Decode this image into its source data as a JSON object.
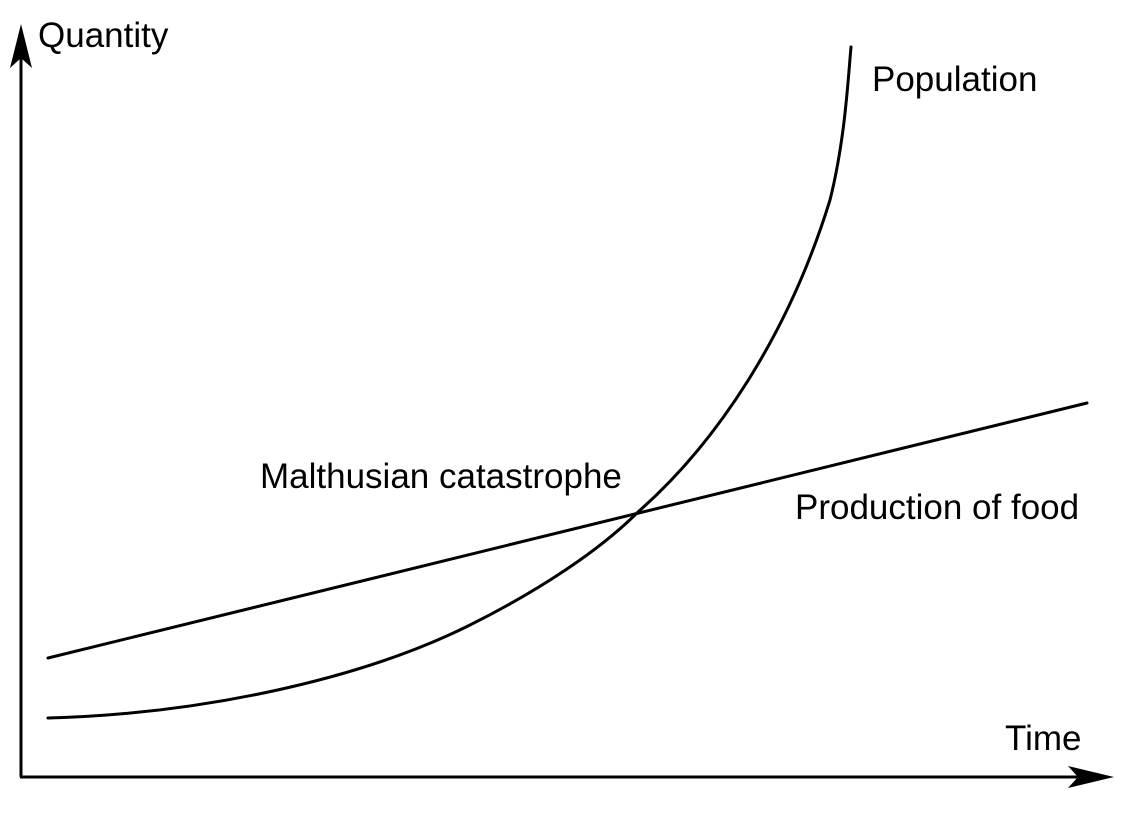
{
  "labels": {
    "y_axis": "Quantity",
    "x_axis": "Time",
    "population": "Population",
    "food": "Production of food",
    "catastrophe": "Malthusian catastrophe"
  },
  "colors": {
    "line": "#000000",
    "background": "#ffffff"
  }
}
